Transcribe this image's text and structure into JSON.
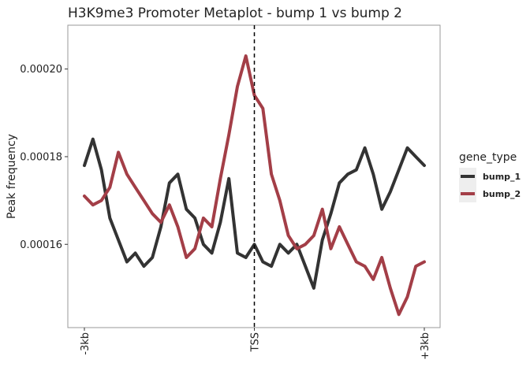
{
  "chart_data": {
    "type": "line",
    "title": "H3K9me3 Promoter Metaplot - bump 1 vs bump 2",
    "xlabel": "",
    "ylabel": "Peak frequency",
    "x_tick_labels": [
      "-3kb",
      "TSS",
      "+3kb"
    ],
    "x_ticks": [
      -3000,
      0,
      3000
    ],
    "xlim": [
      -3000,
      3000
    ],
    "y_tick_labels": [
      "0.00016",
      "0.00018",
      "0.00020"
    ],
    "y_ticks": [
      0.00016,
      0.00018,
      0.0002
    ],
    "ylim": [
      0.000141,
      0.00021
    ],
    "vline": {
      "x": 0,
      "style": "dashed"
    },
    "legend": {
      "title": "gene_type",
      "position": "right"
    },
    "grid": false,
    "x": [
      -3000,
      -2850,
      -2700,
      -2550,
      -2400,
      -2250,
      -2100,
      -1950,
      -1800,
      -1650,
      -1500,
      -1350,
      -1200,
      -1050,
      -900,
      -750,
      -600,
      -450,
      -300,
      -150,
      0,
      150,
      300,
      450,
      600,
      750,
      900,
      1050,
      1200,
      1350,
      1500,
      1650,
      1800,
      1950,
      2100,
      2250,
      2400,
      2550,
      2700,
      2850,
      3000
    ],
    "series": [
      {
        "name": "bump_1",
        "color": "#333333",
        "values": [
          0.000178,
          0.000184,
          0.000177,
          0.000166,
          0.000161,
          0.000156,
          0.000158,
          0.000155,
          0.000157,
          0.000164,
          0.000174,
          0.000176,
          0.000168,
          0.000166,
          0.00016,
          0.000158,
          0.000165,
          0.000175,
          0.000158,
          0.000157,
          0.00016,
          0.000156,
          0.000155,
          0.00016,
          0.000158,
          0.00016,
          0.000155,
          0.00015,
          0.000161,
          0.000167,
          0.000174,
          0.000176,
          0.000177,
          0.000182,
          0.000176,
          0.000168,
          0.000172,
          0.000177,
          0.000182,
          0.00018,
          0.000178
        ]
      },
      {
        "name": "bump_2",
        "color": "#A33E47",
        "values": [
          0.000171,
          0.000169,
          0.00017,
          0.000173,
          0.000181,
          0.000176,
          0.000173,
          0.00017,
          0.000167,
          0.000165,
          0.000169,
          0.000164,
          0.000157,
          0.000159,
          0.000166,
          0.000164,
          0.000175,
          0.000185,
          0.000196,
          0.000203,
          0.000194,
          0.000191,
          0.000176,
          0.00017,
          0.000162,
          0.000159,
          0.00016,
          0.000162,
          0.000168,
          0.000159,
          0.000164,
          0.00016,
          0.000156,
          0.000155,
          0.000152,
          0.000157,
          0.00015,
          0.000144,
          0.000148,
          0.000155,
          0.000156
        ]
      }
    ]
  }
}
